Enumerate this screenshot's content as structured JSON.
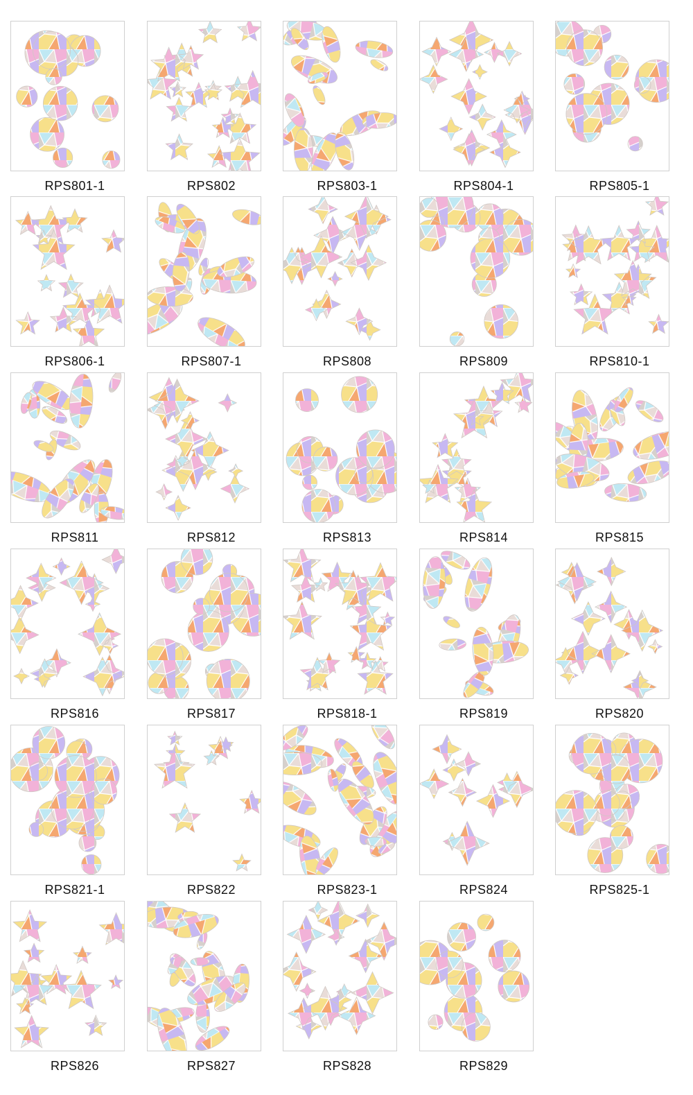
{
  "items": [
    "RPS801-1",
    "RPS802",
    "RPS803-1",
    "RPS804-1",
    "RPS805-1",
    "RPS806-1",
    "RPS807-1",
    "RPS808",
    "RPS809",
    "RPS810-1",
    "RPS811",
    "RPS812",
    "RPS813",
    "RPS814",
    "RPS815",
    "RPS816",
    "RPS817",
    "RPS818-1",
    "RPS819",
    "RPS820",
    "RPS821-1",
    "RPS822",
    "RPS823-1",
    "RPS824",
    "RPS825-1",
    "RPS826",
    "RPS827",
    "RPS828",
    "RPS829"
  ]
}
